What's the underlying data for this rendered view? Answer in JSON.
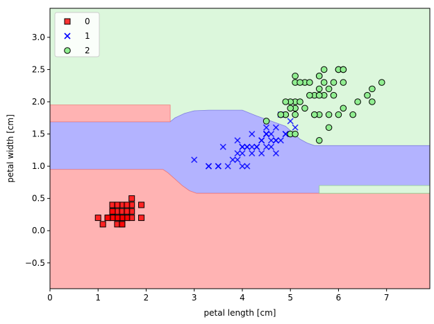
{
  "chart_data": {
    "type": "scatter",
    "title": "",
    "xlabel": "petal length [cm]",
    "ylabel": "petal width [cm]",
    "xlim": [
      0,
      7.9
    ],
    "ylim": [
      -0.9,
      3.45
    ],
    "xticks": [
      "0",
      "1",
      "2",
      "3",
      "4",
      "5",
      "6",
      "7"
    ],
    "yticks": [
      "−0.5",
      "0.0",
      "0.5",
      "1.0",
      "1.5",
      "2.0",
      "2.5",
      "3.0"
    ],
    "legend_position": "upper-left",
    "grid": false,
    "decision_regions": {
      "description_classes": [
        "0",
        "1",
        "2"
      ],
      "colors": {
        "0": "#ffb3b3",
        "1": "#b3b3ff",
        "2": "#dcf7dc"
      },
      "boundary_colors": {
        "0": "#f07878",
        "1": "#7f7fe0"
      },
      "class0_lower": [
        [
          0,
          0.95
        ],
        [
          2.35,
          0.95
        ],
        [
          2.45,
          0.9
        ],
        [
          2.6,
          0.8
        ],
        [
          2.75,
          0.7
        ],
        [
          2.9,
          0.62
        ],
        [
          3.05,
          0.58
        ],
        [
          5.6,
          0.58
        ],
        [
          7.9,
          0.58
        ]
      ],
      "class1_lower": [
        [
          0,
          0.95
        ],
        [
          2.35,
          0.95
        ],
        [
          2.45,
          0.9
        ],
        [
          2.6,
          0.8
        ],
        [
          2.75,
          0.7
        ],
        [
          2.9,
          0.62
        ],
        [
          3.05,
          0.58
        ],
        [
          5.6,
          0.58
        ],
        [
          7.9,
          0.58
        ]
      ],
      "class1_upper": [
        [
          0,
          1.69
        ],
        [
          2.5,
          1.69
        ],
        [
          2.6,
          1.75
        ],
        [
          2.8,
          1.82
        ],
        [
          3.0,
          1.86
        ],
        [
          3.3,
          1.87
        ],
        [
          4.0,
          1.87
        ],
        [
          4.3,
          1.78
        ],
        [
          4.6,
          1.7
        ],
        [
          4.9,
          1.62
        ],
        [
          5.05,
          1.52
        ],
        [
          5.2,
          1.42
        ],
        [
          5.35,
          1.36
        ],
        [
          5.5,
          1.32
        ],
        [
          7.9,
          1.32
        ]
      ],
      "class0_top_block": [
        [
          0,
          1.69
        ],
        [
          2.5,
          1.69
        ],
        [
          2.5,
          1.95
        ],
        [
          0,
          1.95
        ]
      ],
      "green_notch": [
        [
          5.6,
          0.58
        ],
        [
          7.9,
          0.58
        ],
        [
          7.9,
          0.7
        ],
        [
          5.6,
          0.7
        ]
      ]
    },
    "series": [
      {
        "name": "0",
        "marker": "square",
        "color": "#ff0000",
        "points": [
          [
            1.4,
            0.2
          ],
          [
            1.3,
            0.2
          ],
          [
            1.5,
            0.2
          ],
          [
            1.4,
            0.2
          ],
          [
            1.7,
            0.4
          ],
          [
            1.4,
            0.3
          ],
          [
            1.5,
            0.2
          ],
          [
            1.5,
            0.1
          ],
          [
            1.6,
            0.2
          ],
          [
            1.4,
            0.1
          ],
          [
            1.1,
            0.1
          ],
          [
            1.2,
            0.2
          ],
          [
            1.3,
            0.4
          ],
          [
            1.7,
            0.3
          ],
          [
            1.5,
            0.3
          ],
          [
            1.7,
            0.2
          ],
          [
            1.5,
            0.4
          ],
          [
            1.0,
            0.2
          ],
          [
            1.9,
            0.2
          ],
          [
            1.6,
            0.4
          ],
          [
            1.6,
            0.2
          ],
          [
            1.5,
            0.2
          ],
          [
            1.4,
            0.2
          ],
          [
            1.5,
            0.1
          ],
          [
            1.3,
            0.2
          ],
          [
            1.9,
            0.4
          ],
          [
            1.6,
            0.3
          ],
          [
            1.7,
            0.5
          ],
          [
            1.3,
            0.3
          ],
          [
            1.2,
            0.2
          ],
          [
            1.4,
            0.4
          ],
          [
            1.3,
            0.3
          ]
        ]
      },
      {
        "name": "1",
        "marker": "x",
        "color": "#0000ff",
        "points": [
          [
            4.7,
            1.4
          ],
          [
            4.5,
            1.5
          ],
          [
            4.9,
            1.5
          ],
          [
            4.0,
            1.3
          ],
          [
            4.6,
            1.5
          ],
          [
            4.5,
            1.3
          ],
          [
            4.7,
            1.6
          ],
          [
            3.3,
            1.0
          ],
          [
            4.6,
            1.3
          ],
          [
            3.9,
            1.4
          ],
          [
            3.5,
            1.0
          ],
          [
            4.2,
            1.5
          ],
          [
            4.0,
            1.0
          ],
          [
            4.7,
            1.4
          ],
          [
            3.6,
            1.3
          ],
          [
            4.4,
            1.4
          ],
          [
            4.5,
            1.5
          ],
          [
            4.1,
            1.0
          ],
          [
            4.5,
            1.5
          ],
          [
            3.9,
            1.1
          ],
          [
            4.8,
            1.8
          ],
          [
            4.0,
            1.3
          ],
          [
            4.9,
            1.5
          ],
          [
            4.7,
            1.2
          ],
          [
            4.3,
            1.3
          ],
          [
            4.4,
            1.4
          ],
          [
            4.8,
            1.4
          ],
          [
            5.0,
            1.7
          ],
          [
            4.5,
            1.5
          ],
          [
            3.5,
            1.0
          ],
          [
            3.8,
            1.1
          ],
          [
            3.7,
            1.0
          ],
          [
            3.9,
            1.2
          ],
          [
            5.1,
            1.6
          ],
          [
            4.5,
            1.6
          ],
          [
            4.2,
            1.3
          ],
          [
            4.1,
            1.3
          ],
          [
            4.4,
            1.2
          ],
          [
            4.6,
            1.4
          ],
          [
            4.0,
            1.2
          ],
          [
            3.3,
            1.0
          ],
          [
            4.2,
            1.2
          ],
          [
            4.3,
            1.3
          ],
          [
            3.0,
            1.1
          ],
          [
            4.1,
            1.3
          ]
        ]
      },
      {
        "name": "2",
        "marker": "circle",
        "color": "#90ee90",
        "points": [
          [
            6.0,
            2.5
          ],
          [
            5.1,
            1.9
          ],
          [
            5.9,
            2.1
          ],
          [
            5.6,
            1.8
          ],
          [
            5.8,
            2.2
          ],
          [
            6.6,
            2.1
          ],
          [
            4.5,
            1.7
          ],
          [
            6.3,
            1.8
          ],
          [
            5.8,
            1.8
          ],
          [
            6.1,
            2.5
          ],
          [
            5.1,
            2.0
          ],
          [
            5.3,
            1.9
          ],
          [
            5.5,
            2.1
          ],
          [
            5.0,
            2.0
          ],
          [
            5.1,
            2.4
          ],
          [
            5.3,
            2.3
          ],
          [
            5.5,
            1.8
          ],
          [
            6.7,
            2.2
          ],
          [
            6.9,
            2.3
          ],
          [
            5.0,
            1.5
          ],
          [
            5.7,
            2.3
          ],
          [
            4.9,
            2.0
          ],
          [
            6.7,
            2.0
          ],
          [
            4.9,
            1.8
          ],
          [
            5.7,
            2.1
          ],
          [
            6.0,
            1.8
          ],
          [
            4.8,
            1.8
          ],
          [
            4.9,
            1.8
          ],
          [
            5.6,
            2.1
          ],
          [
            5.8,
            1.6
          ],
          [
            6.1,
            1.9
          ],
          [
            6.4,
            2.0
          ],
          [
            5.6,
            2.2
          ],
          [
            5.1,
            1.5
          ],
          [
            5.6,
            1.4
          ],
          [
            6.1,
            2.3
          ],
          [
            5.6,
            2.4
          ],
          [
            5.5,
            1.8
          ],
          [
            4.8,
            1.8
          ],
          [
            5.4,
            2.1
          ],
          [
            5.6,
            2.4
          ],
          [
            5.1,
            2.3
          ],
          [
            5.9,
            2.3
          ],
          [
            5.7,
            2.5
          ],
          [
            5.2,
            2.3
          ],
          [
            5.0,
            1.9
          ],
          [
            5.2,
            2.0
          ],
          [
            5.4,
            2.3
          ],
          [
            5.1,
            1.8
          ],
          [
            6.0,
            2.5
          ],
          [
            6.1,
            2.5
          ]
        ]
      }
    ]
  }
}
